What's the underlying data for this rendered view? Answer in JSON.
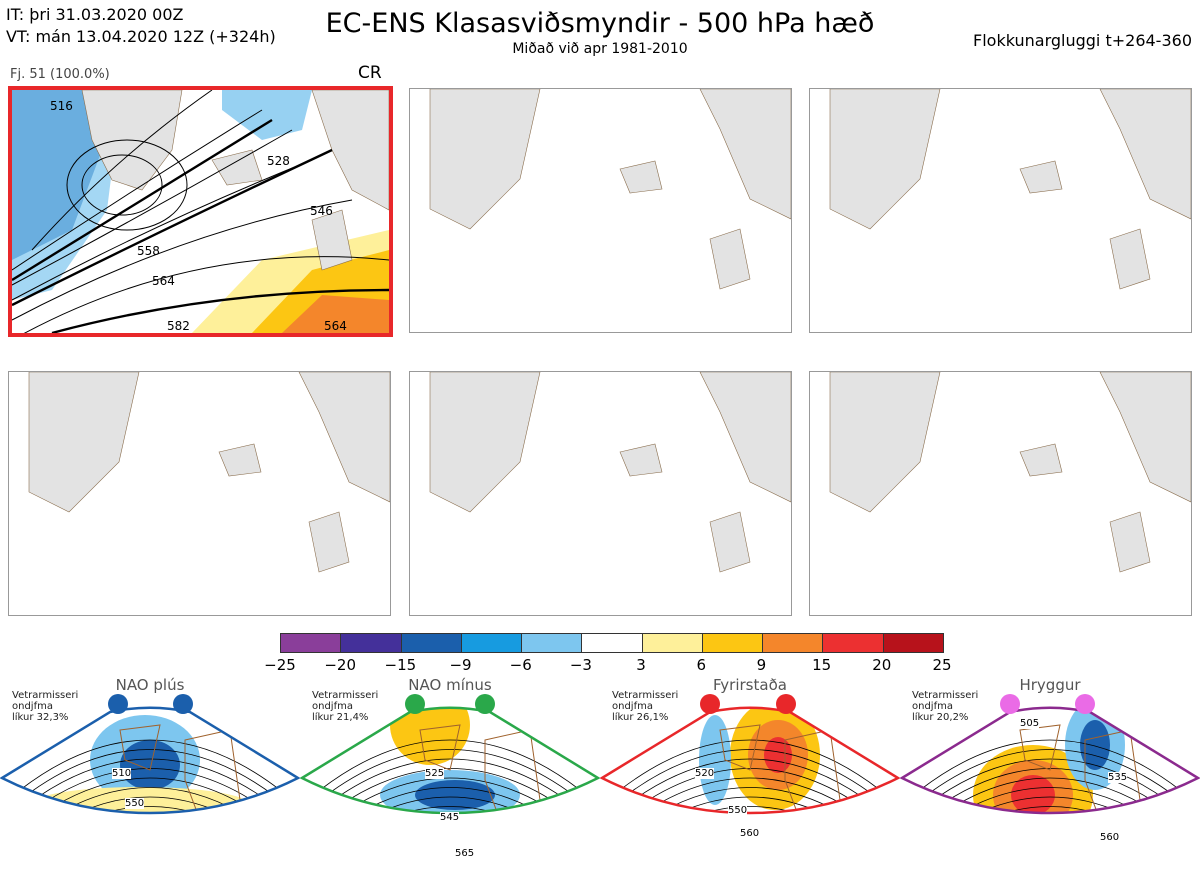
{
  "header": {
    "it_line": "IT: þri 31.03.2020 00Z",
    "vt_line": "VT: mán 13.04.2020 12Z  (+324h)",
    "title": "EC-ENS Klasasviðsmyndir - 500 hPa hæð",
    "subtitle": "Miðað við apr 1981-2010",
    "window": "Flokkunargluggi t+264-360"
  },
  "panel": {
    "members": "Fj. 51 (100.0%)",
    "regime_code": "CR",
    "contour_labels": [
      "516",
      "528",
      "546",
      "558",
      "564",
      "582",
      "564"
    ]
  },
  "colorbar": {
    "colors": [
      "#8a3e9a",
      "#44309a",
      "#1b5fac",
      "#179be0",
      "#7dc6ef",
      "#ffffff",
      "#fef09a",
      "#fcc613",
      "#f4862b",
      "#ec3031",
      "#b7121b"
    ],
    "ticks": [
      "−25",
      "−20",
      "−15",
      "−9",
      "−6",
      "−3",
      "3",
      "6",
      "9",
      "15",
      "20",
      "25"
    ]
  },
  "regimes": [
    {
      "name": "NAO plús",
      "note1": "Vetrarmisseri",
      "note2": "ondjfma",
      "note3": "líkur 32,3%",
      "color": "#1b5fac",
      "dot": "#1b5fac",
      "labels": [
        "510",
        "550"
      ]
    },
    {
      "name": "NAO mínus",
      "note1": "Vetrarmisseri",
      "note2": "ondjfma",
      "note3": "líkur 21,4%",
      "color": "#2aa84a",
      "dot": "#2aa84a",
      "labels": [
        "525",
        "545",
        "565"
      ]
    },
    {
      "name": "Fyrirstaða",
      "note1": "Vetrarmisseri",
      "note2": "ondjfma",
      "note3": "líkur 26,1%",
      "color": "#e8272a",
      "dot": "#e8272a",
      "labels": [
        "520",
        "550",
        "560"
      ]
    },
    {
      "name": "Hryggur",
      "note1": "Vetrarmisseri",
      "note2": "ondjfma",
      "note3": "líkur 20,2%",
      "color": "#8b2a8e",
      "dot": "#ea6be6",
      "labels": [
        "505",
        "535",
        "560"
      ]
    }
  ]
}
